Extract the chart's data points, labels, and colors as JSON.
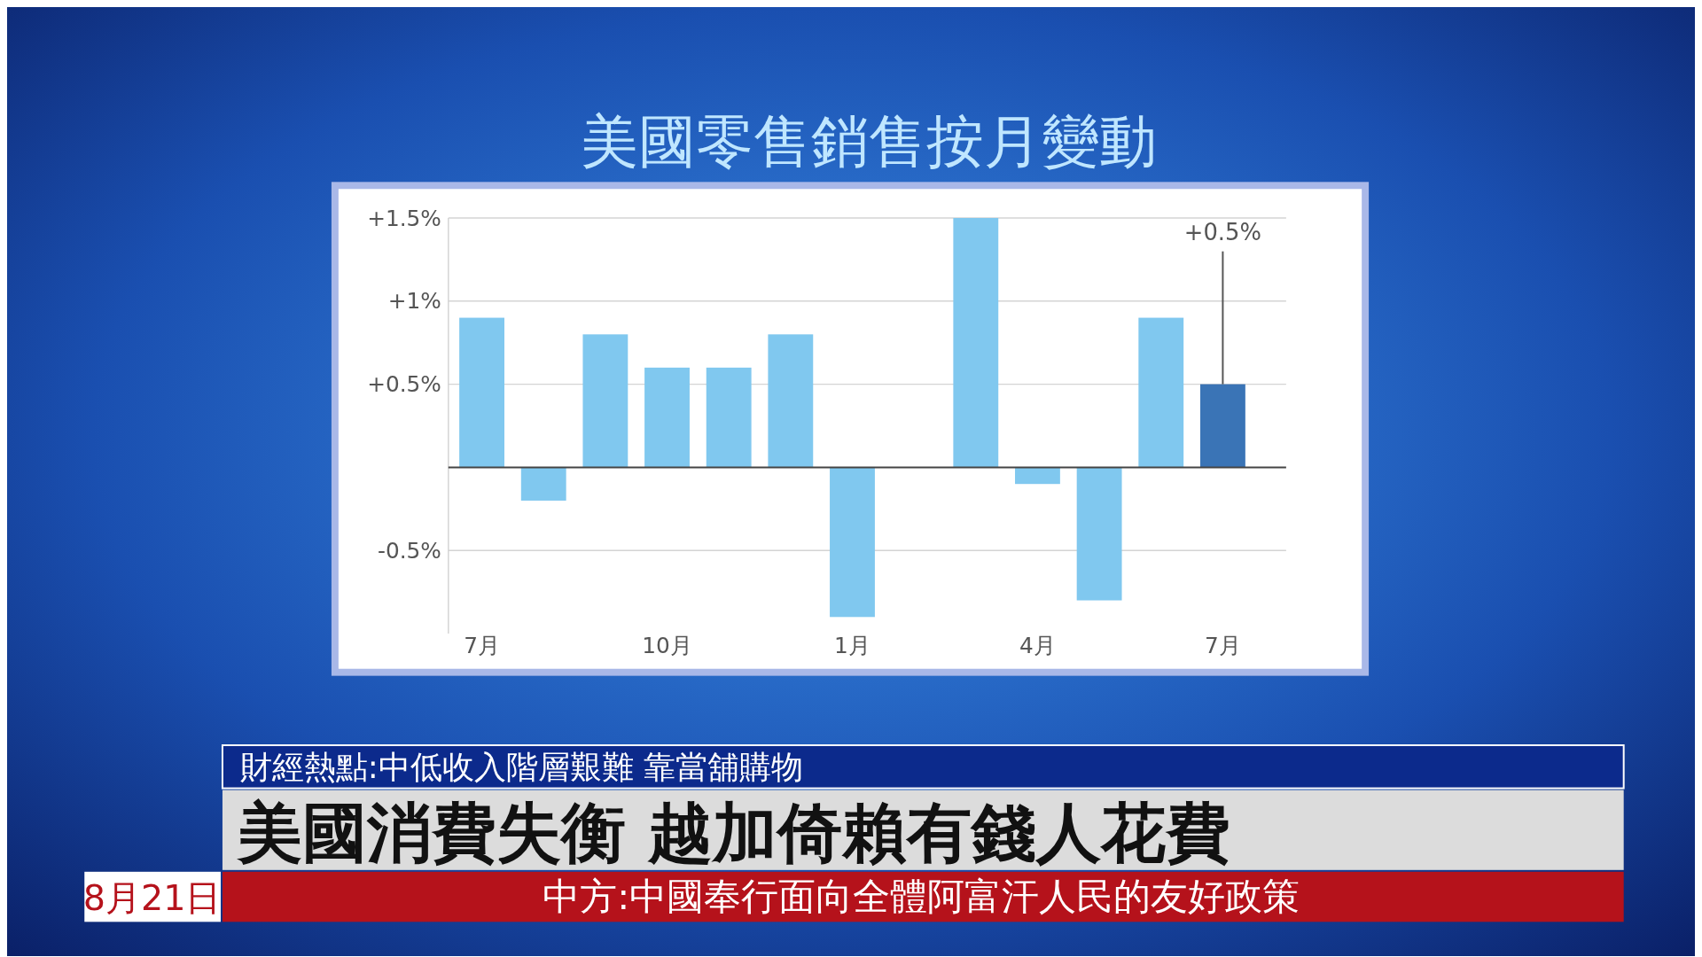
{
  "chart_data": {
    "type": "bar",
    "title": "美國零售銷售按月變動",
    "categories": [
      "7月",
      null,
      null,
      "10月",
      null,
      null,
      "1月",
      null,
      null,
      "4月",
      null,
      null,
      "7月"
    ],
    "values": [
      0.9,
      -0.2,
      0.8,
      0.6,
      0.6,
      0.8,
      -0.9,
      0,
      1.5,
      -0.1,
      -0.8,
      0.9,
      0.5
    ],
    "colors": [
      "#80c8ef",
      "#80c8ef",
      "#80c8ef",
      "#80c8ef",
      "#80c8ef",
      "#80c8ef",
      "#80c8ef",
      "#80c8ef",
      "#80c8ef",
      "#80c8ef",
      "#80c8ef",
      "#80c8ef",
      "#3a74b6"
    ],
    "value_labels": [
      null,
      null,
      null,
      null,
      null,
      null,
      null,
      null,
      null,
      null,
      null,
      null,
      "+0.5%"
    ],
    "ylim": [
      -1,
      1.5
    ],
    "yticks": [
      {
        "value": -0.5,
        "label": "-0.5%"
      },
      {
        "value": 0,
        "label": null
      },
      {
        "value": 0.5,
        "label": "+0.5%"
      },
      {
        "value": 1,
        "label": "+1%"
      },
      {
        "value": 1.5,
        "label": "+1.5%"
      }
    ],
    "grid": "y",
    "annotations": [
      "財經熱點:中低收入階層艱難 靠當舖購物",
      "美國消費失衡 越加倚賴有錢人花費",
      "中方:中國奉行面向全體阿富汗人民的友好政策",
      "8月21日"
    ]
  }
}
